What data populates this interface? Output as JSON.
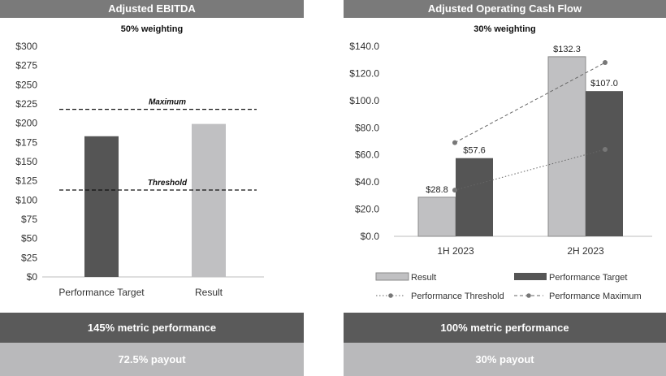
{
  "left_panel": {
    "title": "Adjusted EBITDA",
    "weighting": "50% weighting",
    "performance": "145% metric performance",
    "payout": "72.5% payout"
  },
  "right_panel": {
    "title": "Adjusted Operating Cash Flow",
    "weighting": "30% weighting",
    "performance": "100% metric performance",
    "payout": "30% payout"
  },
  "colors": {
    "title_bar": "#7a7a7a",
    "dark_bar": "#555555",
    "light_bar": "#c0c0c2",
    "performance_band": "#5a5a5a",
    "payout_band": "#b9b9bb"
  },
  "chart_data": [
    {
      "type": "bar",
      "title": "Adjusted EBITDA",
      "subtitle": "50% weighting",
      "categories": [
        "Performance Target",
        "Result"
      ],
      "values": [
        183,
        199
      ],
      "bar_colors": [
        "#555555",
        "#c0c0c2"
      ],
      "ylim": [
        0,
        300
      ],
      "yticks": [
        0,
        25,
        50,
        75,
        100,
        125,
        150,
        175,
        200,
        225,
        250,
        275,
        300
      ],
      "ytick_labels": [
        "$0",
        "$25",
        "$50",
        "$75",
        "$100",
        "$125",
        "$150",
        "$175",
        "$200",
        "$225",
        "$250",
        "$275",
        "$300"
      ],
      "reference_lines": [
        {
          "label": "Maximum",
          "value": 218
        },
        {
          "label": "Threshold",
          "value": 113
        }
      ],
      "grid": false
    },
    {
      "type": "bar",
      "title": "Adjusted Operating Cash Flow",
      "subtitle": "30% weighting",
      "categories": [
        "1H 2023",
        "2H 2023"
      ],
      "series": [
        {
          "name": "Result",
          "values": [
            28.8,
            132.3
          ],
          "labels": [
            "$28.8",
            "$132.3"
          ],
          "color": "#c0c0c2"
        },
        {
          "name": "Performance Target",
          "values": [
            57.6,
            107.0
          ],
          "labels": [
            "$57.6",
            "$107.0"
          ],
          "color": "#555555"
        }
      ],
      "lines": [
        {
          "name": "Performance Threshold",
          "values": [
            34,
            64
          ],
          "style": "dotted"
        },
        {
          "name": "Performance Maximum",
          "values": [
            69,
            128
          ],
          "style": "dashed"
        }
      ],
      "ylim": [
        0,
        140
      ],
      "yticks": [
        0,
        20,
        40,
        60,
        80,
        100,
        120,
        140
      ],
      "ytick_labels": [
        "$0.0",
        "$20.0",
        "$40.0",
        "$60.0",
        "$80.0",
        "$100.0",
        "$120.0",
        "$140.0"
      ],
      "legend": [
        "Result",
        "Performance Target",
        "Performance Threshold",
        "Performance Maximum"
      ],
      "legend_position": "bottom",
      "grid": false
    }
  ]
}
